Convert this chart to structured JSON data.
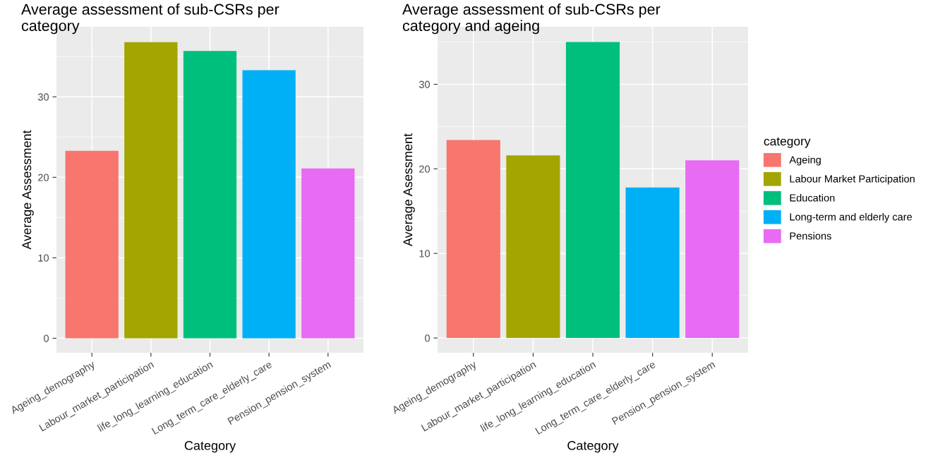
{
  "chart_data": [
    {
      "type": "bar",
      "title": "Average assessment of sub-CSRs per\ncategory",
      "xlabel": "Category",
      "ylabel": "Average Assessment",
      "categories": [
        "Ageing_demography",
        "Labour_market_participation",
        "life_long_learning_education",
        "Long_term_care_elderly_care",
        "Pension_pension_system"
      ],
      "values": [
        23.3,
        36.8,
        35.7,
        33.3,
        21.1
      ],
      "colors": [
        "#f8766d",
        "#a3a500",
        "#00bf7d",
        "#00b0f6",
        "#e76bf3"
      ],
      "ylim": [
        -1.8,
        38.7
      ],
      "yticks": [
        0,
        10,
        20,
        30
      ],
      "grid": true,
      "legend": false
    },
    {
      "type": "bar",
      "title": "Average assessment of sub-CSRs per\ncategory and ageing",
      "xlabel": "Category",
      "ylabel": "Average Asessment",
      "legend_title": "category",
      "categories": [
        "Ageing_demography",
        "Labour_market_participation",
        "life_long_learning_education",
        "Long_term_care_elderly_care",
        "Pension_pension_system"
      ],
      "series": [
        {
          "name": "Ageing",
          "color": "#f8766d",
          "values": [
            23.4,
            null,
            null,
            null,
            null
          ]
        },
        {
          "name": "Labour Market Participation",
          "color": "#a3a500",
          "values": [
            null,
            21.6,
            null,
            null,
            null
          ]
        },
        {
          "name": "Education",
          "color": "#00bf7d",
          "values": [
            null,
            null,
            35.0,
            null,
            null
          ]
        },
        {
          "name": "Long-term and elderly care",
          "color": "#00b0f6",
          "values": [
            null,
            null,
            null,
            17.8,
            null
          ]
        },
        {
          "name": "Pensions",
          "color": "#e76bf3",
          "values": [
            null,
            null,
            null,
            null,
            21.0
          ]
        }
      ],
      "ylim": [
        -1.75,
        36.8
      ],
      "yticks": [
        0,
        10,
        20,
        30
      ],
      "grid": true,
      "legend": "right"
    }
  ]
}
